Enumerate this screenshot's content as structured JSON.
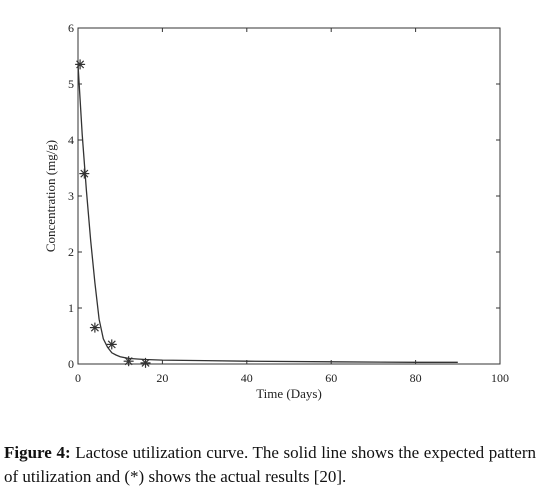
{
  "caption": {
    "label": "Figure 4:",
    "text": "Lactose utilization curve. The solid line shows the expected pattern of utilization and (*) shows the actual results [20]."
  },
  "chart_data": {
    "type": "line",
    "title": "",
    "xlabel": "Time (Days)",
    "ylabel": "Concentration (mg/g)",
    "xlim": [
      0,
      100
    ],
    "ylim": [
      0,
      6
    ],
    "x_ticks": [
      0,
      20,
      40,
      60,
      80,
      100
    ],
    "y_ticks": [
      0,
      1,
      2,
      3,
      4,
      5,
      6
    ],
    "grid": false,
    "series": [
      {
        "style": "solid-line",
        "color": "#333333",
        "x": [
          0,
          1,
          2,
          3,
          4,
          5,
          6,
          7,
          8,
          9,
          10,
          12,
          14,
          16,
          20,
          30,
          40,
          60,
          80,
          90
        ],
        "y": [
          5.35,
          4.1,
          3.1,
          2.2,
          1.45,
          0.8,
          0.45,
          0.3,
          0.2,
          0.16,
          0.13,
          0.1,
          0.09,
          0.08,
          0.07,
          0.06,
          0.05,
          0.04,
          0.03,
          0.03
        ]
      },
      {
        "style": "asterisk-markers",
        "color": "#333333",
        "x": [
          0.5,
          1.5,
          4,
          8,
          12,
          16
        ],
        "y": [
          5.35,
          3.4,
          0.65,
          0.35,
          0.05,
          0.02
        ]
      }
    ]
  }
}
